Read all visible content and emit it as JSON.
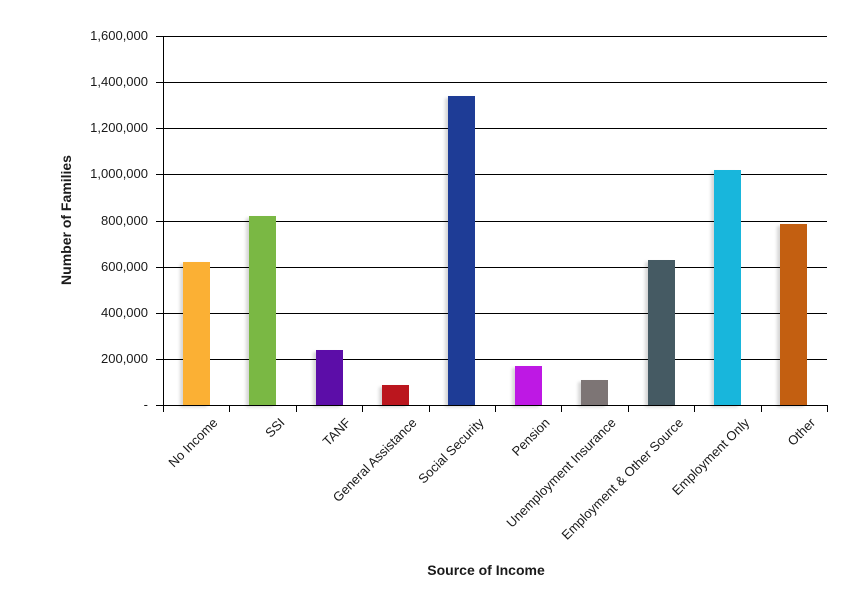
{
  "chart_data": {
    "type": "bar",
    "title": "",
    "xlabel": "Source of Income",
    "ylabel": "Number of Families",
    "ylim": [
      0,
      1600000
    ],
    "ytick_step": 200000,
    "grid": true,
    "legend": false,
    "categories": [
      "No Income",
      "SSI",
      "TANF",
      "General Assistance",
      "Social Security",
      "Pension",
      "Unemployment Insurance",
      "Employment & Other Source",
      "Employment Only",
      "Other"
    ],
    "values": [
      620000,
      820000,
      240000,
      85000,
      1340000,
      170000,
      110000,
      630000,
      1020000,
      785000
    ],
    "bar_colors": [
      "#FBB034",
      "#7AB844",
      "#5C0DA8",
      "#BB161E",
      "#1E3C96",
      "#BE18E4",
      "#7D7575",
      "#455A63",
      "#18B6DC",
      "#C35F11"
    ],
    "yticks": [
      {
        "value": 0,
        "label": "-"
      },
      {
        "value": 200000,
        "label": "200,000"
      },
      {
        "value": 400000,
        "label": "400,000"
      },
      {
        "value": 600000,
        "label": "600,000"
      },
      {
        "value": 800000,
        "label": "800,000"
      },
      {
        "value": 1000000,
        "label": "1,000,000"
      },
      {
        "value": 1200000,
        "label": "1,200,000"
      },
      {
        "value": 1400000,
        "label": "1,400,000"
      },
      {
        "value": 1600000,
        "label": "1,600,000"
      }
    ]
  }
}
